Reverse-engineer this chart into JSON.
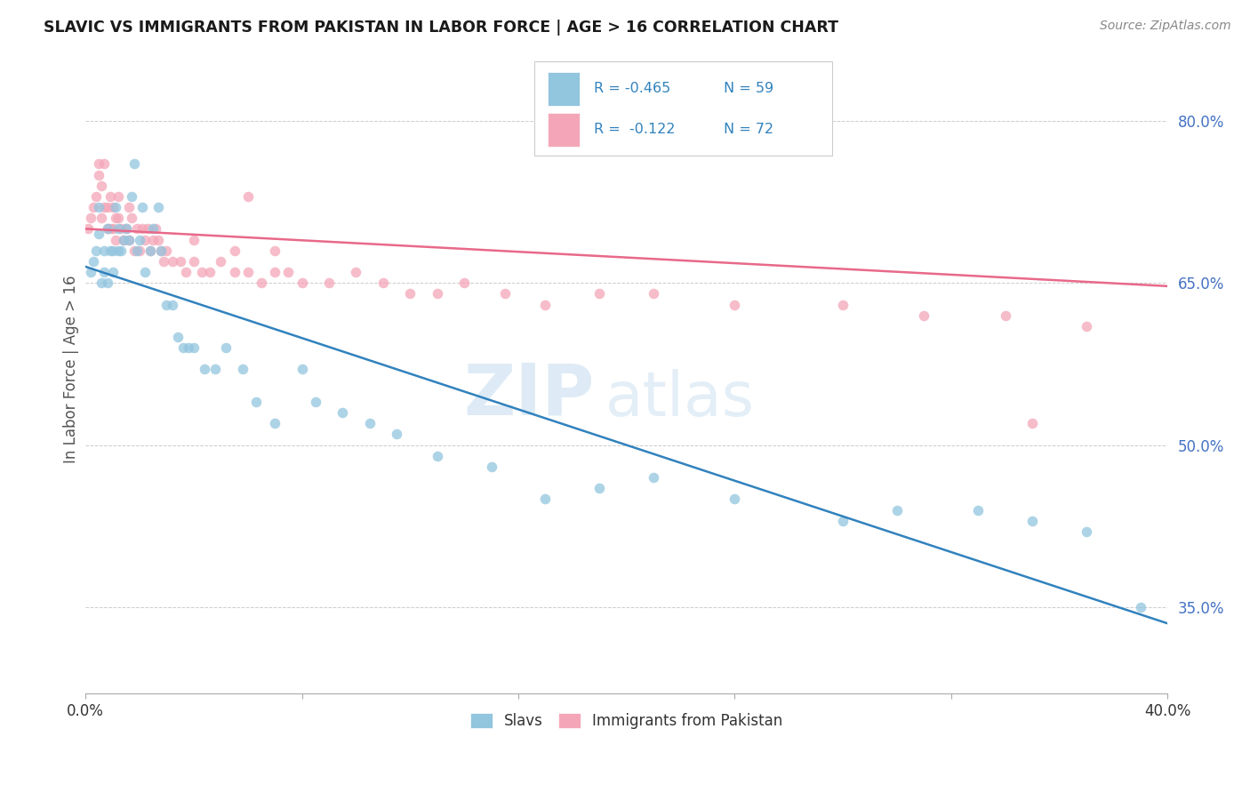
{
  "title": "SLAVIC VS IMMIGRANTS FROM PAKISTAN IN LABOR FORCE | AGE > 16 CORRELATION CHART",
  "source": "Source: ZipAtlas.com",
  "ylabel": "In Labor Force | Age > 16",
  "yticks": [
    "80.0%",
    "65.0%",
    "50.0%",
    "35.0%"
  ],
  "ytick_vals": [
    0.8,
    0.65,
    0.5,
    0.35
  ],
  "xlim": [
    0.0,
    0.4
  ],
  "ylim": [
    0.27,
    0.87
  ],
  "legend_blue_r": "R = -0.465",
  "legend_blue_n": "N = 59",
  "legend_pink_r": "R =  -0.122",
  "legend_pink_n": "N = 72",
  "blue_color": "#92c5de",
  "pink_color": "#f4a6b8",
  "blue_line_color": "#3182bd",
  "pink_line_color": "#e8698a",
  "slavs_label": "Slavs",
  "pakistan_label": "Immigrants from Pakistan",
  "slavs_x": [
    0.002,
    0.003,
    0.004,
    0.005,
    0.005,
    0.006,
    0.007,
    0.007,
    0.008,
    0.008,
    0.009,
    0.01,
    0.01,
    0.011,
    0.012,
    0.012,
    0.013,
    0.014,
    0.015,
    0.016,
    0.017,
    0.018,
    0.019,
    0.02,
    0.021,
    0.022,
    0.024,
    0.025,
    0.027,
    0.028,
    0.03,
    0.032,
    0.034,
    0.036,
    0.038,
    0.04,
    0.044,
    0.048,
    0.052,
    0.058,
    0.063,
    0.07,
    0.08,
    0.085,
    0.095,
    0.105,
    0.115,
    0.13,
    0.15,
    0.17,
    0.19,
    0.21,
    0.24,
    0.28,
    0.3,
    0.33,
    0.35,
    0.37,
    0.39
  ],
  "slavs_y": [
    0.66,
    0.67,
    0.68,
    0.72,
    0.695,
    0.65,
    0.66,
    0.68,
    0.7,
    0.65,
    0.68,
    0.66,
    0.68,
    0.72,
    0.7,
    0.68,
    0.68,
    0.69,
    0.7,
    0.69,
    0.73,
    0.76,
    0.68,
    0.69,
    0.72,
    0.66,
    0.68,
    0.7,
    0.72,
    0.68,
    0.63,
    0.63,
    0.6,
    0.59,
    0.59,
    0.59,
    0.57,
    0.57,
    0.59,
    0.57,
    0.54,
    0.52,
    0.57,
    0.54,
    0.53,
    0.52,
    0.51,
    0.49,
    0.48,
    0.45,
    0.46,
    0.47,
    0.45,
    0.43,
    0.44,
    0.44,
    0.43,
    0.42,
    0.35
  ],
  "pakistan_x": [
    0.001,
    0.002,
    0.003,
    0.004,
    0.005,
    0.005,
    0.006,
    0.006,
    0.007,
    0.007,
    0.008,
    0.008,
    0.009,
    0.009,
    0.01,
    0.01,
    0.011,
    0.011,
    0.012,
    0.012,
    0.013,
    0.014,
    0.015,
    0.016,
    0.016,
    0.017,
    0.018,
    0.019,
    0.02,
    0.021,
    0.022,
    0.023,
    0.024,
    0.025,
    0.026,
    0.027,
    0.028,
    0.029,
    0.03,
    0.032,
    0.035,
    0.037,
    0.04,
    0.043,
    0.046,
    0.05,
    0.055,
    0.06,
    0.065,
    0.07,
    0.075,
    0.08,
    0.09,
    0.1,
    0.11,
    0.12,
    0.13,
    0.14,
    0.155,
    0.17,
    0.19,
    0.21,
    0.24,
    0.28,
    0.31,
    0.34,
    0.37,
    0.04,
    0.055,
    0.06,
    0.07,
    0.35
  ],
  "pakistan_y": [
    0.7,
    0.71,
    0.72,
    0.73,
    0.75,
    0.76,
    0.71,
    0.74,
    0.72,
    0.76,
    0.72,
    0.7,
    0.7,
    0.73,
    0.7,
    0.72,
    0.69,
    0.71,
    0.71,
    0.73,
    0.7,
    0.69,
    0.7,
    0.72,
    0.69,
    0.71,
    0.68,
    0.7,
    0.68,
    0.7,
    0.69,
    0.7,
    0.68,
    0.69,
    0.7,
    0.69,
    0.68,
    0.67,
    0.68,
    0.67,
    0.67,
    0.66,
    0.67,
    0.66,
    0.66,
    0.67,
    0.66,
    0.66,
    0.65,
    0.66,
    0.66,
    0.65,
    0.65,
    0.66,
    0.65,
    0.64,
    0.64,
    0.65,
    0.64,
    0.63,
    0.64,
    0.64,
    0.63,
    0.63,
    0.62,
    0.62,
    0.61,
    0.69,
    0.68,
    0.73,
    0.68,
    0.52
  ],
  "blue_trendline_x": [
    0.0,
    0.4
  ],
  "blue_trendline_y": [
    0.665,
    0.335
  ],
  "pink_trendline_x": [
    0.0,
    0.4
  ],
  "pink_trendline_y": [
    0.7,
    0.647
  ],
  "watermark_zip": "ZIP",
  "watermark_atlas": "atlas",
  "background_color": "#ffffff",
  "grid_color": "#cccccc",
  "ytick_color": "#4472c4"
}
